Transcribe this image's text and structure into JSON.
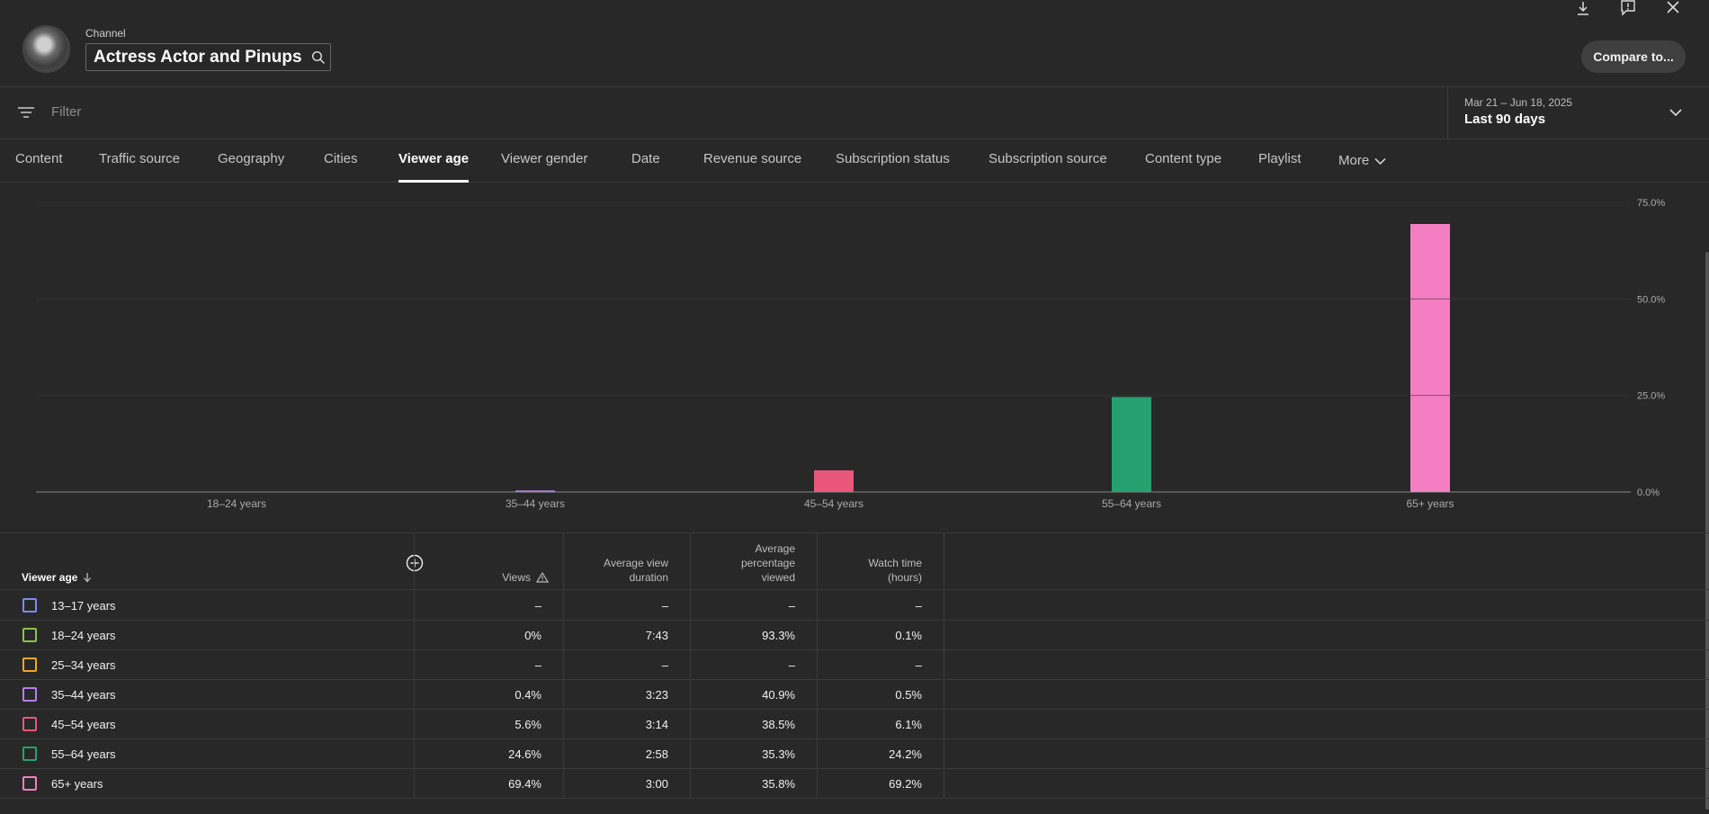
{
  "header": {
    "channel_label": "Channel",
    "channel_name": "Actress Actor and Pinups",
    "compare_label": "Compare to...",
    "icons": [
      "download-icon",
      "feedback-icon",
      "close-icon",
      "search-icon"
    ]
  },
  "filter": {
    "placeholder": "Filter",
    "date_range": "Mar 21 – Jun 18, 2025",
    "date_label": "Last 90 days"
  },
  "tabs": [
    {
      "label": "Content"
    },
    {
      "label": "Traffic source"
    },
    {
      "label": "Geography"
    },
    {
      "label": "Cities"
    },
    {
      "label": "Viewer age",
      "active": true
    },
    {
      "label": "Viewer gender"
    },
    {
      "label": "Date"
    },
    {
      "label": "Revenue source"
    },
    {
      "label": "Subscription status"
    },
    {
      "label": "Subscription source"
    },
    {
      "label": "Content type"
    },
    {
      "label": "Playlist"
    },
    {
      "label": "More"
    }
  ],
  "chart_data": {
    "type": "bar",
    "categories": [
      "18–24 years",
      "35–44 years",
      "45–54 years",
      "55–64 years",
      "65+ years"
    ],
    "values": [
      0,
      0.4,
      5.6,
      24.6,
      69.4
    ],
    "colors": [
      "#8bc34a",
      "#b37feb",
      "#e8577a",
      "#26a06e",
      "#f47ec2"
    ],
    "y_ticks": [
      "0.0%",
      "25.0%",
      "50.0%",
      "75.0%"
    ],
    "ylim": [
      0,
      75
    ],
    "y_axis_side": "right",
    "grid": true
  },
  "table": {
    "headers": {
      "dimension": "Viewer age",
      "views": "Views",
      "avg_view_duration": [
        "Average view",
        "duration"
      ],
      "avg_pct_viewed": [
        "Average",
        "percentage",
        "viewed"
      ],
      "watch_time": [
        "Watch time",
        "(hours)"
      ]
    },
    "rows": [
      {
        "label": "13–17 years",
        "color": "#7a8cf0",
        "views": "–",
        "duration": "–",
        "pct": "–",
        "watch": "–"
      },
      {
        "label": "18–24 years",
        "color": "#8bc34a",
        "views": "0%",
        "duration": "7:43",
        "pct": "93.3%",
        "watch": "0.1%"
      },
      {
        "label": "25–34 years",
        "color": "#f5a623",
        "views": "–",
        "duration": "–",
        "pct": "–",
        "watch": "–"
      },
      {
        "label": "35–44 years",
        "color": "#b37feb",
        "views": "0.4%",
        "duration": "3:23",
        "pct": "40.9%",
        "watch": "0.5%"
      },
      {
        "label": "45–54 years",
        "color": "#e8577a",
        "views": "5.6%",
        "duration": "3:14",
        "pct": "38.5%",
        "watch": "6.1%"
      },
      {
        "label": "55–64 years",
        "color": "#26a06e",
        "views": "24.6%",
        "duration": "2:58",
        "pct": "35.3%",
        "watch": "24.2%"
      },
      {
        "label": "65+ years",
        "color": "#f47ec2",
        "views": "69.4%",
        "duration": "3:00",
        "pct": "35.8%",
        "watch": "69.2%"
      }
    ]
  }
}
